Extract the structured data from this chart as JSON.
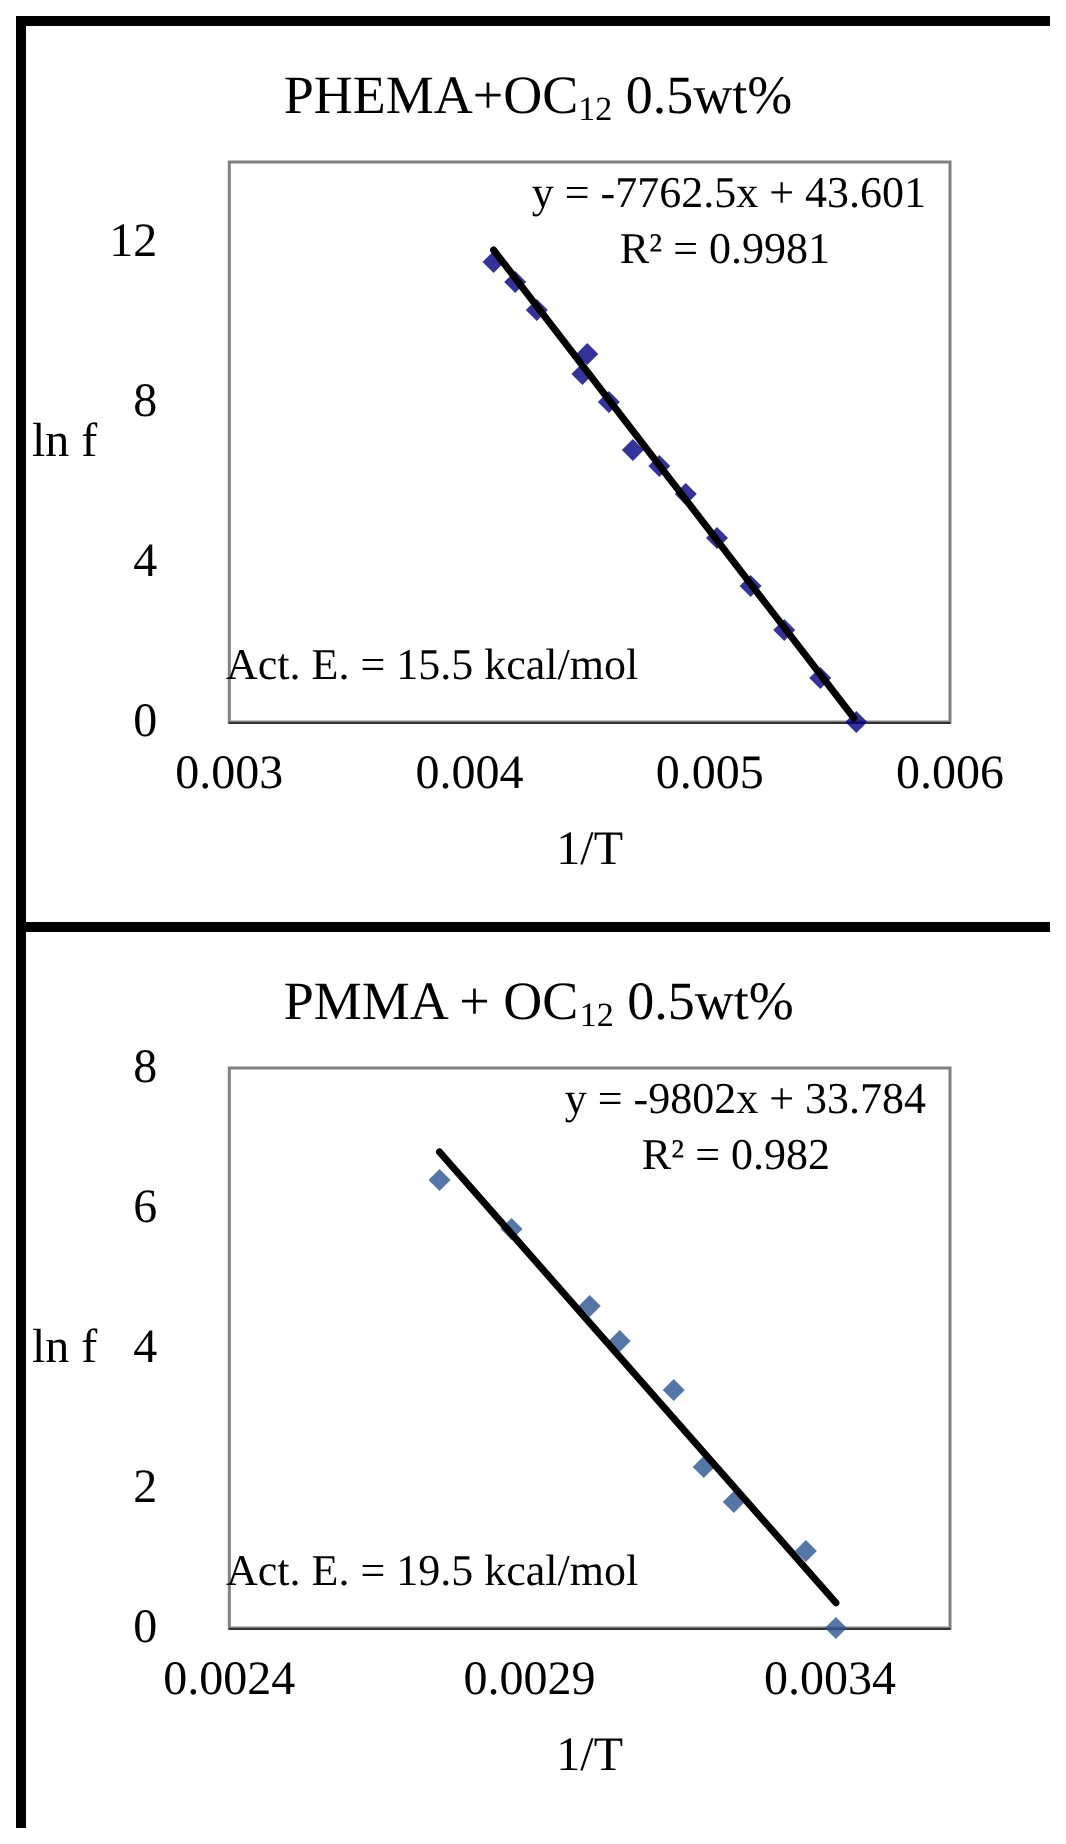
{
  "chart_data": [
    {
      "type": "scatter",
      "title": "PHEMA+OC$_{12}$ 0.5wt%",
      "xlabel": "1/T",
      "ylabel": "ln f",
      "xlim": [
        0.003,
        0.006
      ],
      "xticks": [
        0.003,
        0.004,
        0.005,
        0.006
      ],
      "ylim": [
        0,
        14
      ],
      "yticks": [
        0,
        4,
        8,
        12
      ],
      "grid": false,
      "marker": "diamond",
      "annotations": [
        "y = -7762.5x + 43.601",
        "R² = 0.9981",
        "Act. E. = 15.5 kcal/mol"
      ],
      "series": [
        {
          "type": "scatter",
          "color": "#000080",
          "x": [
            0.0041,
            0.00419,
            0.00428,
            0.00449,
            0.00447,
            0.00458,
            0.00468,
            0.00479,
            0.0049,
            0.00503,
            0.00517,
            0.00531,
            0.00546,
            0.00561
          ],
          "values": [
            11.5,
            11.0,
            10.3,
            9.2,
            8.7,
            8.0,
            6.8,
            6.4,
            5.7,
            4.6,
            3.4,
            2.3,
            1.1,
            0.0
          ]
        },
        {
          "type": "line",
          "color": "#000000",
          "marker": "none",
          "x": [
            0.0041,
            0.0056
          ],
          "values": [
            11.8,
            0.1
          ]
        }
      ]
    },
    {
      "type": "scatter",
      "title": "PMMA + OC$_{12}$ 0.5wt%",
      "xlabel": "1/T",
      "ylabel": "ln f",
      "xlim": [
        0.0024,
        0.0036
      ],
      "xticks": [
        0.0024,
        0.0029,
        0.0034
      ],
      "ylim": [
        0,
        8
      ],
      "yticks": [
        0,
        2,
        4,
        6,
        8
      ],
      "grid": false,
      "marker": "diamond",
      "annotations": [
        "y = -9802x + 33.784",
        "R² = 0.982",
        "Act. E. = 19.5 kcal/mol"
      ],
      "series": [
        {
          "type": "scatter",
          "color": "#2a5592",
          "x": [
            0.00275,
            0.00287,
            0.003,
            0.00305,
            0.00314,
            0.00319,
            0.00324,
            0.00336,
            0.00341
          ],
          "values": [
            6.4,
            5.7,
            4.6,
            4.1,
            3.4,
            2.3,
            1.8,
            1.1,
            0.0
          ]
        },
        {
          "type": "line",
          "color": "#000000",
          "marker": "none",
          "x": [
            0.00275,
            0.00341
          ],
          "values": [
            6.8,
            0.36
          ]
        }
      ]
    }
  ]
}
